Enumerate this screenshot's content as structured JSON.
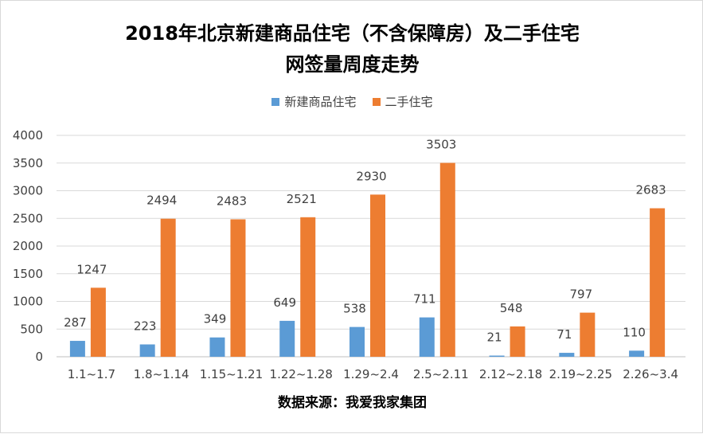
{
  "chart_data": {
    "type": "bar",
    "title_line1": "2018年北京新建商品住宅（不含保障房）及二手住宅",
    "title_line2": "网签量周度走势",
    "categories": [
      "1.1~1.7",
      "1.8~1.14",
      "1.15~1.21",
      "1.22~1.28",
      "1.29~2.4",
      "2.5~2.11",
      "2.12~2.18",
      "2.19~2.25",
      "2.26~3.4"
    ],
    "series": [
      {
        "name": "新建商品住宅",
        "color": "#5b9bd5",
        "values": [
          287,
          223,
          349,
          649,
          538,
          711,
          21,
          71,
          110
        ]
      },
      {
        "name": "二手住宅",
        "color": "#ed7d31",
        "values": [
          1247,
          2494,
          2483,
          2521,
          2930,
          3503,
          548,
          797,
          2683
        ]
      }
    ],
    "ylim": [
      0,
      4000
    ],
    "yticks": [
      0,
      500,
      1000,
      1500,
      2000,
      2500,
      3000,
      3500,
      4000
    ],
    "grid": true,
    "legend_position": "top",
    "source": "数据来源：我爱我家集团"
  }
}
